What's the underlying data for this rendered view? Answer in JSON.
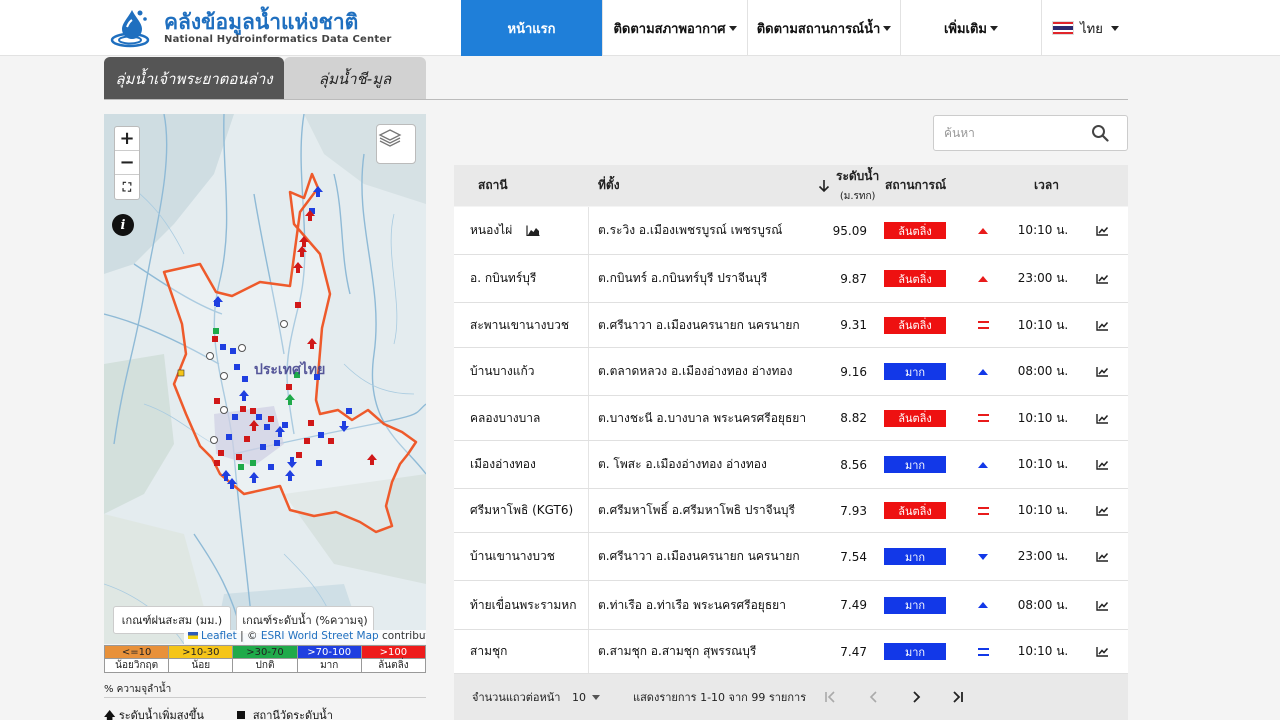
{
  "header": {
    "logo_th": "คลังข้อมูลน้ำแห่งชาติ",
    "logo_en": "National Hydroinformatics Data Center",
    "nav": [
      {
        "label": "หน้าแรก",
        "active": true
      },
      {
        "label": "ติดตามสภาพอากาศ",
        "dropdown": true
      },
      {
        "label": "ติดตามสถานการณ์น้ำ",
        "dropdown": true
      },
      {
        "label": "เพิ่มเติม",
        "dropdown": true
      }
    ],
    "language": "ไทย"
  },
  "tabs": [
    {
      "label": "ลุ่มน้ำเจ้าพระยาตอนล่าง",
      "active": true
    },
    {
      "label": "ลุ่มน้ำชี-มูล",
      "active": false
    }
  ],
  "map": {
    "toggle_rain": "เกณฑ์ฝนสะสม (มม.)",
    "toggle_level": "เกณฑ์ระดับน้ำ (%ความจุ)",
    "attribution_leaflet": "Leaflet",
    "attribution_sep": " | © ",
    "attribution_esri": "ESRI World Street Map",
    "attribution_tail": " contributors"
  },
  "legend": {
    "ranges": [
      {
        "range": "<=10",
        "label": "น้อยวิกฤต",
        "color": "#e8913a"
      },
      {
        "range": ">10-30",
        "label": "น้อย",
        "color": "#f5c518"
      },
      {
        "range": ">30-70",
        "label": "ปกติ",
        "color": "#1faa4a"
      },
      {
        "range": ">70-100",
        "label": "มาก",
        "color": "#1f3fe0"
      },
      {
        "range": ">100",
        "label": "ล้นตลิ่ง",
        "color": "#ee1c1c"
      }
    ],
    "note": "% ความจุลำน้ำ",
    "item_rise": "ระดับน้ำเพิ่มสูงขึ้น",
    "item_station": "สถานีวัดระดับน้ำ"
  },
  "search": {
    "placeholder": "ค้นหา"
  },
  "table": {
    "headers": {
      "station": "สถานี",
      "location": "ที่ตั้ง",
      "level": "ระดับน้ำ",
      "level_unit": "(ม.รทก)",
      "status": "สถานการณ์",
      "time": "เวลา"
    },
    "rows": [
      {
        "station": "หนองไผ่",
        "location": "ต.ระวิง อ.เมืองเพชรบูรณ์ เพชรบูรณ์",
        "level": "95.09",
        "status": "ล้นตลิ่ง",
        "status_color": "#ee1111",
        "trend": "up",
        "trend_color": "#e81b1b",
        "time": "10:10 น."
      },
      {
        "station": "อ. กบินทร์บุรี",
        "location": "ต.กบินทร์ อ.กบินทร์บุรี ปราจีนบุรี",
        "level": "9.87",
        "status": "ล้นตลิ่ง",
        "status_color": "#ee1111",
        "trend": "up",
        "trend_color": "#e81b1b",
        "time": "23:00 น."
      },
      {
        "station": "สะพานเขานางบวช",
        "location": "ต.ศรีนาวา อ.เมืองนครนายก นครนายก",
        "level": "9.31",
        "status": "ล้นตลิ่ง",
        "status_color": "#ee1111",
        "trend": "eq",
        "trend_color": "#e81b1b",
        "time": "10:10 น."
      },
      {
        "station": "บ้านบางแก้ว",
        "location": "ต.ตลาดหลวง อ.เมืองอ่างทอง อ่างทอง",
        "level": "9.16",
        "status": "มาก",
        "status_color": "#1238e8",
        "trend": "up",
        "trend_color": "#1238e8",
        "time": "08:00 น."
      },
      {
        "station": "คลองบางบาล",
        "location": "ต.บางชะนี อ.บางบาล พระนครศรีอยุธยา",
        "level": "8.82",
        "status": "ล้นตลิ่ง",
        "status_color": "#ee1111",
        "trend": "eq",
        "trend_color": "#e81b1b",
        "time": "10:10 น."
      },
      {
        "station": "เมืองอ่างทอง",
        "location": "ต. โพสะ อ.เมืองอ่างทอง อ่างทอง",
        "level": "8.56",
        "status": "มาก",
        "status_color": "#1238e8",
        "trend": "up",
        "trend_color": "#1238e8",
        "time": "10:10 น."
      },
      {
        "station": "ศรีมหาโพธิ (KGT6)",
        "location": "ต.ศรีมหาโพธิ์ อ.ศรีมหาโพธิ ปราจีนบุรี",
        "level": "7.93",
        "status": "ล้นตลิ่ง",
        "status_color": "#ee1111",
        "trend": "eq",
        "trend_color": "#e81b1b",
        "time": "10:10 น."
      },
      {
        "station": "บ้านเขานางบวช",
        "location": "ต.ศรีนาวา อ.เมืองนครนายก นครนายก",
        "level": "7.54",
        "status": "มาก",
        "status_color": "#1238e8",
        "trend": "down",
        "trend_color": "#1238e8",
        "time": "23:00 น."
      },
      {
        "station": "ท้ายเขื่อนพระรามหก",
        "location": "ต.ท่าเรือ อ.ท่าเรือ พระนครศรีอยุธยา",
        "level": "7.49",
        "status": "มาก",
        "status_color": "#1238e8",
        "trend": "up",
        "trend_color": "#1238e8",
        "time": "08:00 น."
      },
      {
        "station": "สามชุก",
        "location": "ต.สามชุก อ.สามชุก สุพรรณบุรี",
        "level": "7.47",
        "status": "มาก",
        "status_color": "#1238e8",
        "trend": "eq",
        "trend_color": "#1238e8",
        "time": "10:10 น."
      }
    ],
    "footer": {
      "rows_per_page_label": "จำนวนแถวต่อหน้า",
      "rows_per_page": "10",
      "range_text": "แสดงรายการ 1-10 จาก 99 รายการ"
    }
  }
}
